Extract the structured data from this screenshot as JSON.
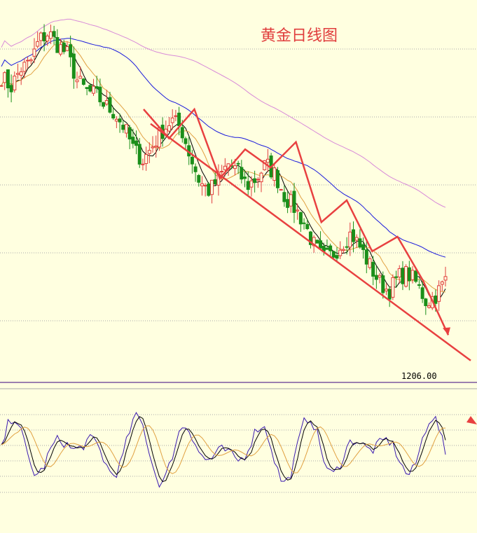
{
  "chart_data": {
    "type": "candlestick",
    "title": "黄金日线图",
    "price_label": "1206.00",
    "grid": true,
    "colors": {
      "background": "#ffffe0",
      "grid": "#aaaaaa",
      "up": "#e03c3c",
      "down": "#1a8f1a",
      "ma_fast": "#000000",
      "ma_mid": "#e0a040",
      "ma_slow": "#1a1adc",
      "ma_long": "#d88ad8",
      "annotation": "#e84040",
      "separator": "#3a0080",
      "osc_k": "#3a1ab0",
      "osc_d": "#000000",
      "osc_avg": "#e0a040"
    },
    "candles_anchor": [
      1318,
      1312,
      1322,
      1325,
      1338,
      1342,
      1335,
      1330,
      1316,
      1310,
      1308,
      1302,
      1298,
      1290,
      1278,
      1272,
      1280,
      1288,
      1294,
      1290,
      1274,
      1260,
      1255,
      1262,
      1270,
      1266,
      1258,
      1262,
      1270,
      1264,
      1252,
      1246,
      1238,
      1226,
      1218,
      1220,
      1226,
      1232,
      1224,
      1214,
      1205,
      1200,
      1208,
      1210,
      1204,
      1194,
      1198,
      1206
    ],
    "trend_line": {
      "from_price": 1292,
      "to_price": 1162
    },
    "zigzag": [
      1300,
      1284,
      1300,
      1262,
      1278,
      1268,
      1282,
      1238,
      1250,
      1222,
      1230,
      1206,
      1176
    ]
  }
}
